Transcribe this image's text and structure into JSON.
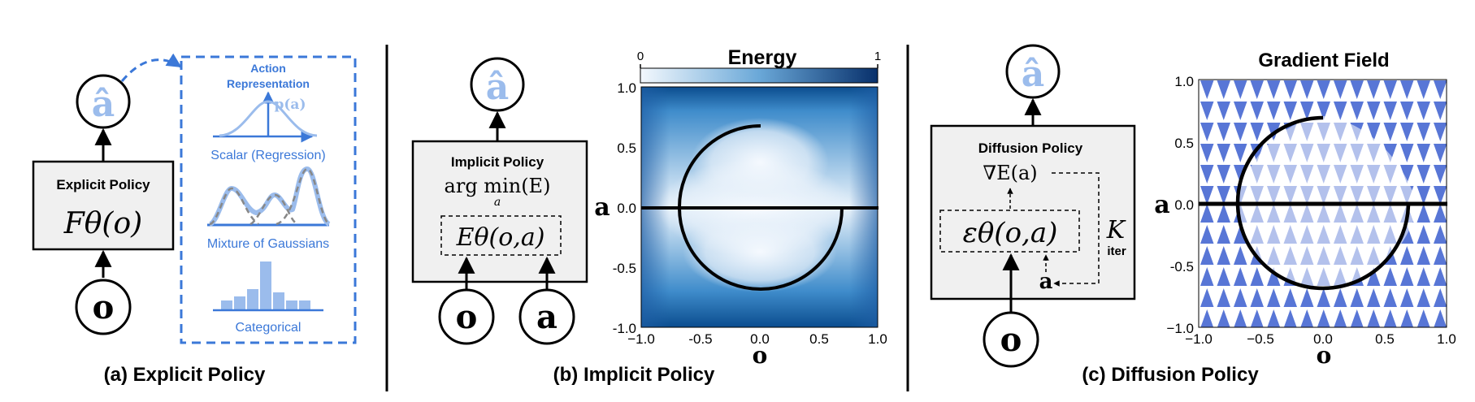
{
  "panel_a": {
    "caption": "(a) Explicit Policy",
    "box_title": "Explicit Policy",
    "box_formula": "Fθ(o)",
    "input_symbol": "o",
    "output_symbol": "â",
    "rep_title_line1": "Action",
    "rep_title_line2": "Representation",
    "pa_label": "p(a)",
    "rep_items": [
      "Scalar (Regression)",
      "Mixture of Gaussians",
      "Categorical"
    ]
  },
  "panel_b": {
    "caption": "(b) Implicit Policy",
    "box_title": "Implicit Policy",
    "argmin_text": "arg min(E)",
    "argmin_sub": "a",
    "energy_formula": "Eθ(o,a)",
    "input_o": "o",
    "input_a": "a",
    "output_symbol": "â",
    "colorbar_title": "Energy",
    "colorbar_min": "0",
    "colorbar_max": "1",
    "xlabel": "o",
    "ylabel": "a",
    "xticks": [
      "−1.0",
      "-0.5",
      "0.0",
      "0.5",
      "1.0"
    ],
    "yticks": [
      "1.0",
      "0.5",
      "0.0",
      "-0.5",
      "-1.0"
    ]
  },
  "panel_c": {
    "caption": "(c) Diffusion Policy",
    "box_title": "Diffusion Policy",
    "grad_formula": "∇E(a)",
    "eps_formula": "εθ(o,a)",
    "iter_K": "K",
    "iter_label": "iter",
    "inner_a": "a",
    "input_o": "o",
    "output_symbol": "â",
    "plot_title": "Gradient Field",
    "xlabel": "o",
    "ylabel": "a",
    "xticks": [
      "−1.0",
      "−0.5",
      "0.0",
      "0.5",
      "1.0"
    ],
    "yticks": [
      "1.0",
      "0.5",
      "0.0",
      "-0.5",
      "−1.0"
    ]
  },
  "colors": {
    "accent_blue": "#3b78d8",
    "light_blue": "#9bbcec",
    "box_fill": "#f0f0f0",
    "arrow_blue": "#5876d6"
  }
}
